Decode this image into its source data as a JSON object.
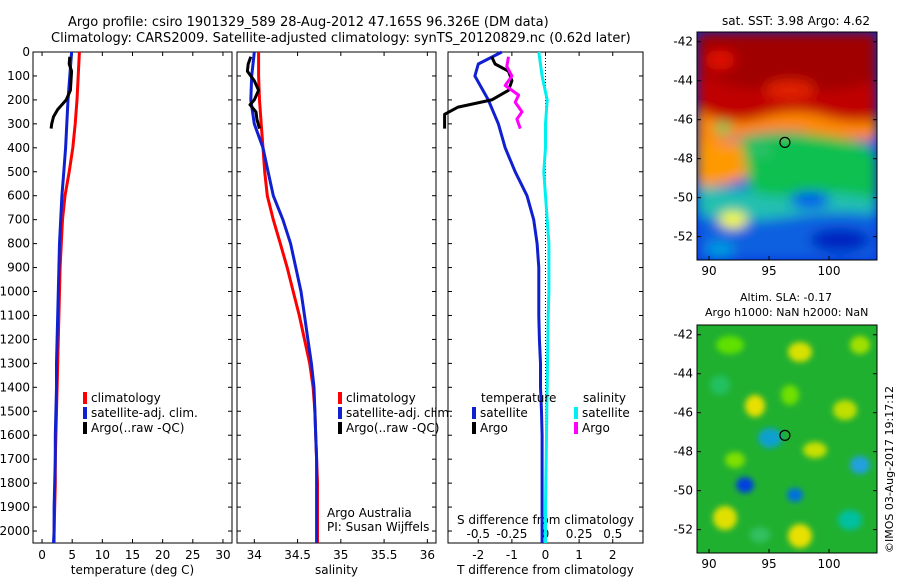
{
  "header": {
    "line1": "Argo profile: csiro 1901329_589 28-Aug-2012 47.165S 96.326E (DM data)",
    "line2": "Climatology: CARS2009. Satellite-adjusted climatology: synTS_20120829.nc (0.62d later)"
  },
  "colors": {
    "climatology": "#ff0000",
    "satellite": "#1020d0",
    "argo": "#000000",
    "sat_salinity": "#00f0f0",
    "argo_salinity": "#ff00ff"
  },
  "chart_data": [
    {
      "type": "line",
      "name": "temperature",
      "xlabel": "temperature (deg C)",
      "xlim": [
        -1.5,
        31.5
      ],
      "ylim": [
        0,
        2050
      ],
      "x_ticks": [
        0,
        5,
        10,
        15,
        20,
        25,
        30
      ],
      "y_ticks": [
        0,
        100,
        200,
        300,
        400,
        500,
        600,
        700,
        800,
        900,
        1000,
        1100,
        1200,
        1300,
        1400,
        1500,
        1600,
        1700,
        1800,
        1900,
        2000
      ],
      "legend": [
        "climatology",
        "satellite-adj. clim.",
        "Argo(..raw -QC)"
      ],
      "series": [
        {
          "name": "climatology",
          "color": "#ff0000",
          "points": [
            [
              6.2,
              0
            ],
            [
              6.0,
              100
            ],
            [
              5.8,
              200
            ],
            [
              5.5,
              300
            ],
            [
              5.1,
              400
            ],
            [
              4.5,
              500
            ],
            [
              3.8,
              600
            ],
            [
              3.4,
              700
            ],
            [
              3.2,
              800
            ],
            [
              3.0,
              900
            ],
            [
              2.9,
              1000
            ],
            [
              2.8,
              1100
            ],
            [
              2.7,
              1200
            ],
            [
              2.6,
              1300
            ],
            [
              2.5,
              1400
            ],
            [
              2.4,
              1500
            ],
            [
              2.3,
              1600
            ],
            [
              2.2,
              1700
            ],
            [
              2.2,
              1800
            ],
            [
              2.1,
              1900
            ],
            [
              2.0,
              2000
            ],
            [
              2.0,
              2050
            ]
          ]
        },
        {
          "name": "satellite-adj. clim.",
          "color": "#1020d0",
          "points": [
            [
              4.9,
              0
            ],
            [
              4.6,
              100
            ],
            [
              4.3,
              200
            ],
            [
              4.1,
              300
            ],
            [
              3.9,
              400
            ],
            [
              3.6,
              500
            ],
            [
              3.3,
              600
            ],
            [
              3.1,
              700
            ],
            [
              2.9,
              800
            ],
            [
              2.8,
              900
            ],
            [
              2.7,
              1000
            ],
            [
              2.6,
              1100
            ],
            [
              2.5,
              1200
            ],
            [
              2.4,
              1300
            ],
            [
              2.4,
              1400
            ],
            [
              2.3,
              1500
            ],
            [
              2.2,
              1600
            ],
            [
              2.2,
              1700
            ],
            [
              2.1,
              1800
            ],
            [
              2.0,
              1900
            ],
            [
              2.0,
              2000
            ],
            [
              1.9,
              2050
            ]
          ]
        },
        {
          "name": "Argo(..raw -QC)",
          "color": "#000000",
          "points": [
            [
              4.6,
              20
            ],
            [
              4.5,
              50
            ],
            [
              4.9,
              80
            ],
            [
              4.8,
              120
            ],
            [
              4.7,
              160
            ],
            [
              4.0,
              200
            ],
            [
              3.3,
              220
            ],
            [
              2.6,
              240
            ],
            [
              1.9,
              270
            ],
            [
              1.6,
              300
            ],
            [
              1.5,
              320
            ]
          ]
        }
      ]
    },
    {
      "type": "line",
      "name": "salinity",
      "xlabel": "salinity",
      "xlim": [
        33.8,
        36.1
      ],
      "ylim": [
        0,
        2050
      ],
      "x_ticks": [
        34,
        34.5,
        35,
        35.5,
        36
      ],
      "legend": [
        "climatology",
        "satellite-adj. clim.",
        "Argo(..raw -QC)"
      ],
      "annotation": [
        "Argo Australia",
        "PI: Susan Wijffels"
      ],
      "series": [
        {
          "name": "climatology",
          "color": "#ff0000",
          "points": [
            [
              34.05,
              0
            ],
            [
              34.05,
              100
            ],
            [
              34.06,
              200
            ],
            [
              34.08,
              300
            ],
            [
              34.1,
              400
            ],
            [
              34.12,
              500
            ],
            [
              34.15,
              600
            ],
            [
              34.22,
              700
            ],
            [
              34.3,
              800
            ],
            [
              34.38,
              900
            ],
            [
              34.45,
              1000
            ],
            [
              34.52,
              1100
            ],
            [
              34.58,
              1200
            ],
            [
              34.64,
              1300
            ],
            [
              34.68,
              1400
            ],
            [
              34.7,
              1500
            ],
            [
              34.71,
              1600
            ],
            [
              34.72,
              1700
            ],
            [
              34.73,
              1800
            ],
            [
              34.73,
              1900
            ],
            [
              34.73,
              2000
            ],
            [
              34.73,
              2050
            ]
          ]
        },
        {
          "name": "satellite-adj. clim.",
          "color": "#1020d0",
          "points": [
            [
              34.0,
              0
            ],
            [
              33.97,
              100
            ],
            [
              33.96,
              200
            ],
            [
              34.0,
              300
            ],
            [
              34.1,
              400
            ],
            [
              34.16,
              500
            ],
            [
              34.22,
              600
            ],
            [
              34.33,
              700
            ],
            [
              34.42,
              800
            ],
            [
              34.48,
              900
            ],
            [
              34.54,
              1000
            ],
            [
              34.58,
              1100
            ],
            [
              34.62,
              1200
            ],
            [
              34.66,
              1300
            ],
            [
              34.69,
              1400
            ],
            [
              34.7,
              1500
            ],
            [
              34.71,
              1600
            ],
            [
              34.72,
              1700
            ],
            [
              34.72,
              1800
            ],
            [
              34.72,
              1900
            ],
            [
              34.72,
              2000
            ],
            [
              34.72,
              2050
            ]
          ]
        },
        {
          "name": "Argo(..raw -QC)",
          "color": "#000000",
          "points": [
            [
              33.96,
              20
            ],
            [
              33.93,
              50
            ],
            [
              33.92,
              80
            ],
            [
              34.0,
              120
            ],
            [
              34.05,
              160
            ],
            [
              34.0,
              200
            ],
            [
              33.95,
              220
            ],
            [
              34.02,
              250
            ],
            [
              34.03,
              280
            ],
            [
              34.06,
              320
            ]
          ]
        }
      ]
    },
    {
      "type": "line",
      "name": "difference from climatology",
      "xlabel": "T difference from climatology",
      "xlabel_top": "S difference from climatology",
      "x_ticks": [
        -2,
        -1,
        0,
        1,
        2
      ],
      "x_ticks_top": [
        -0.5,
        -0.25,
        0,
        0.25,
        0.5
      ],
      "xlim": [
        -2.9,
        2.9
      ],
      "ylim": [
        0,
        2050
      ],
      "legend_headers": [
        "temperature",
        "salinity"
      ],
      "legend": [
        "satellite",
        "Argo",
        "satellite",
        "Argo"
      ],
      "series": [
        {
          "name": "temperature satellite",
          "color": "#1020d0",
          "points": [
            [
              -1.3,
              0
            ],
            [
              -2.0,
              50
            ],
            [
              -2.1,
              100
            ],
            [
              -1.7,
              200
            ],
            [
              -1.4,
              300
            ],
            [
              -1.2,
              400
            ],
            [
              -0.9,
              500
            ],
            [
              -0.55,
              600
            ],
            [
              -0.35,
              700
            ],
            [
              -0.25,
              800
            ],
            [
              -0.2,
              900
            ],
            [
              -0.2,
              1000
            ],
            [
              -0.2,
              1100
            ],
            [
              -0.18,
              1200
            ],
            [
              -0.15,
              1300
            ],
            [
              -0.15,
              1400
            ],
            [
              -0.12,
              1500
            ],
            [
              -0.1,
              1600
            ],
            [
              -0.1,
              1700
            ],
            [
              -0.1,
              1800
            ],
            [
              -0.1,
              1900
            ],
            [
              -0.1,
              2000
            ],
            [
              -0.1,
              2050
            ]
          ]
        },
        {
          "name": "temperature Argo",
          "color": "#000000",
          "points": [
            [
              -1.6,
              20
            ],
            [
              -1.5,
              50
            ],
            [
              -1.1,
              80
            ],
            [
              -1.0,
              120
            ],
            [
              -1.1,
              160
            ],
            [
              -1.6,
              200
            ],
            [
              -2.6,
              230
            ],
            [
              -3.0,
              260
            ],
            [
              -3.0,
              320
            ]
          ]
        },
        {
          "name": "salinity satellite",
          "color": "#00f0f0",
          "points": [
            [
              -0.2,
              0
            ],
            [
              -0.1,
              100
            ],
            [
              0.05,
              200
            ],
            [
              0.0,
              300
            ],
            [
              0.0,
              400
            ],
            [
              -0.05,
              500
            ],
            [
              0.0,
              600
            ],
            [
              0.05,
              700
            ],
            [
              0.1,
              800
            ],
            [
              0.1,
              900
            ],
            [
              0.1,
              1000
            ],
            [
              0.08,
              1100
            ],
            [
              0.07,
              1200
            ],
            [
              0.06,
              1300
            ],
            [
              0.05,
              1400
            ],
            [
              0.04,
              1500
            ],
            [
              0.03,
              1600
            ],
            [
              0.02,
              1700
            ],
            [
              0.01,
              1800
            ],
            [
              0.0,
              1900
            ],
            [
              0.0,
              2000
            ],
            [
              0.0,
              2050
            ]
          ]
        },
        {
          "name": "salinity Argo",
          "color": "#ff00ff",
          "points": [
            [
              -1.1,
              20
            ],
            [
              -1.15,
              60
            ],
            [
              -1.0,
              100
            ],
            [
              -1.2,
              140
            ],
            [
              -0.8,
              180
            ],
            [
              -0.9,
              210
            ],
            [
              -0.7,
              250
            ],
            [
              -0.85,
              280
            ],
            [
              -0.75,
              320
            ]
          ]
        }
      ]
    },
    {
      "type": "heatmap",
      "name": "sst_map",
      "title": "sat. SST: 3.98 Argo: 4.62",
      "x_ticks": [
        90,
        95,
        100
      ],
      "y_ticks": [
        -42,
        -44,
        -46,
        -48,
        -50,
        -52
      ],
      "xlim": [
        89,
        104
      ],
      "ylim": [
        -53.2,
        -41.5
      ],
      "marker": [
        96.326,
        -47.165
      ]
    },
    {
      "type": "heatmap",
      "name": "sla_map",
      "title": "Altim. SLA: -0.17",
      "subtitle": "Argo h1000: NaN h2000: NaN",
      "x_ticks": [
        90,
        95,
        100
      ],
      "y_ticks": [
        -42,
        -44,
        -46,
        -48,
        -50,
        -52
      ],
      "xlim": [
        89,
        104
      ],
      "ylim": [
        -53.2,
        -41.5
      ],
      "marker": [
        96.326,
        -47.165
      ]
    }
  ],
  "watermark": "©IMOS 03-Aug-2017 19:17:12"
}
